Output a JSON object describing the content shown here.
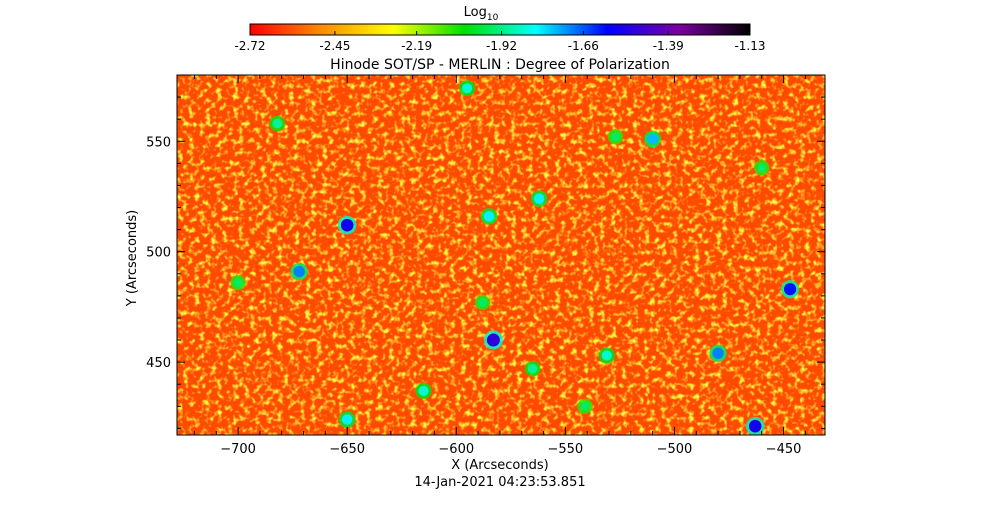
{
  "chart_data": {
    "type": "heatmap",
    "title": "Hinode SOT/SP - MERLIN : Degree of Polarization",
    "xlabel": "X (Arcseconds)",
    "ylabel": "Y (Arcseconds)",
    "timestamp": "14-Jan-2021 04:23:53.851",
    "colorbar": {
      "label": "Log",
      "label_subscript": "10",
      "min": -2.72,
      "max": -1.13,
      "tick_labels": [
        "-2.72",
        "-2.45",
        "-2.19",
        "-1.92",
        "-1.66",
        "-1.39",
        "-1.13"
      ],
      "tick_values": [
        -2.72,
        -2.45,
        -2.19,
        -1.92,
        -1.66,
        -1.39,
        -1.13
      ],
      "colormap": [
        "#ff0000",
        "#ff8c00",
        "#ffff00",
        "#00e000",
        "#00ffff",
        "#0000ff",
        "#7a00a0",
        "#000000"
      ]
    },
    "xlim": [
      -728,
      -431
    ],
    "ylim": [
      417,
      580
    ],
    "x_ticks": [
      -700,
      -650,
      -600,
      -550,
      -500,
      -450
    ],
    "x_tick_labels": [
      "−700",
      "−650",
      "−600",
      "−550",
      "−500",
      "−450"
    ],
    "y_ticks": [
      450,
      500,
      550
    ],
    "y_tick_labels": [
      "450",
      "500",
      "550"
    ],
    "background_level": -2.6,
    "features": [
      {
        "x": -650,
        "y": 512,
        "level": -1.55
      },
      {
        "x": -583,
        "y": 460,
        "level": -1.5
      },
      {
        "x": -463,
        "y": 421,
        "level": -1.55
      },
      {
        "x": -447,
        "y": 483,
        "level": -1.6
      },
      {
        "x": -672,
        "y": 491,
        "level": -1.7
      },
      {
        "x": -585,
        "y": 516,
        "level": -1.8
      },
      {
        "x": -510,
        "y": 551,
        "level": -1.75
      },
      {
        "x": -562,
        "y": 524,
        "level": -1.8
      },
      {
        "x": -480,
        "y": 454,
        "level": -1.7
      },
      {
        "x": -595,
        "y": 574,
        "level": -1.85
      },
      {
        "x": -531,
        "y": 453,
        "level": -1.85
      },
      {
        "x": -700,
        "y": 486,
        "level": -1.95
      },
      {
        "x": -650,
        "y": 424,
        "level": -1.8
      },
      {
        "x": -565,
        "y": 447,
        "level": -1.9
      },
      {
        "x": -615,
        "y": 437,
        "level": -1.85
      },
      {
        "x": -682,
        "y": 558,
        "level": -1.9
      },
      {
        "x": -460,
        "y": 538,
        "level": -1.95
      },
      {
        "x": -527,
        "y": 552,
        "level": -1.95
      },
      {
        "x": -541,
        "y": 430,
        "level": -1.95
      },
      {
        "x": -588,
        "y": 477,
        "level": -1.95
      }
    ]
  }
}
